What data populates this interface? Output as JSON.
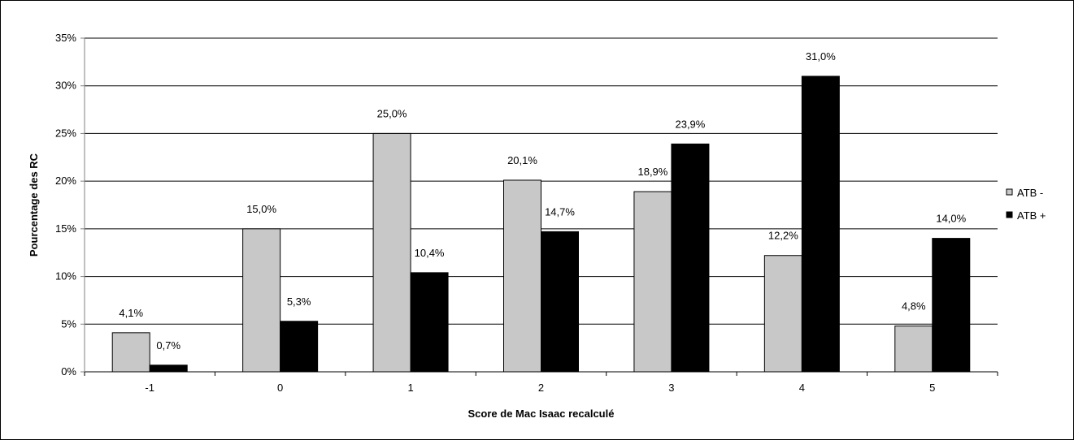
{
  "chart_data": {
    "type": "bar",
    "categories": [
      "-1",
      "0",
      "1",
      "2",
      "3",
      "4",
      "5"
    ],
    "series": [
      {
        "name": "ATB -",
        "values": [
          4.1,
          15.0,
          25.0,
          20.1,
          18.9,
          12.2,
          4.8
        ],
        "labels": [
          "4,1%",
          "15,0%",
          "25,0%",
          "20,1%",
          "18,9%",
          "12,2%",
          "4,8%"
        ]
      },
      {
        "name": "ATB +",
        "values": [
          0.7,
          5.3,
          10.4,
          14.7,
          23.9,
          31.0,
          14.0
        ],
        "labels": [
          "0,7%",
          "5,3%",
          "10,4%",
          "14,7%",
          "23,9%",
          "31,0%",
          "14,0%"
        ]
      }
    ],
    "xlabel": "Score de Mac Isaac recalculé",
    "ylabel": "Pourcentage des RC",
    "ylim": [
      0,
      35
    ],
    "yticks": [
      "0%",
      "5%",
      "10%",
      "15%",
      "20%",
      "25%",
      "30%",
      "35%"
    ],
    "grid": true,
    "legend": "right",
    "colors": [
      "#c8c8c8",
      "#000000"
    ]
  }
}
